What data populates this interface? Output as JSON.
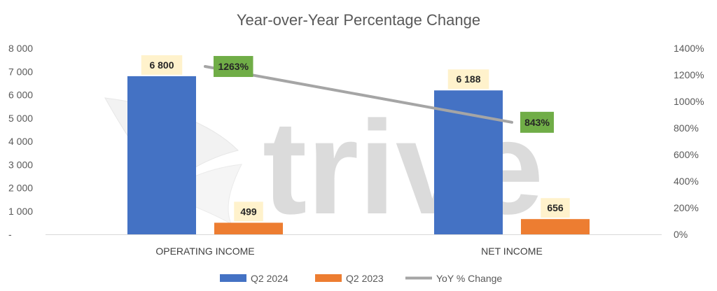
{
  "chart_data": {
    "type": "bar",
    "title": "Year-over-Year Percentage Change",
    "categories": [
      "OPERATING INCOME",
      "NET INCOME"
    ],
    "series": [
      {
        "name": "Q2 2024",
        "type": "bar",
        "axis": "left",
        "color": "#4472c4",
        "values": [
          6800,
          6188
        ],
        "labels": [
          "6 800",
          "6 188"
        ]
      },
      {
        "name": "Q2 2023",
        "type": "bar",
        "axis": "left",
        "color": "#ed7d31",
        "values": [
          499,
          656
        ],
        "labels": [
          "499",
          "656"
        ]
      },
      {
        "name": "YoY % Change",
        "type": "line",
        "axis": "right",
        "color": "#a5a5a5",
        "values": [
          1263,
          843
        ],
        "labels": [
          "1263%",
          "843%"
        ]
      }
    ],
    "y_left": {
      "ylim": [
        0,
        8000
      ],
      "ticks": [
        "-",
        "1 000",
        "2 000",
        "3 000",
        "4 000",
        "5 000",
        "6 000",
        "7 000",
        "8 000"
      ]
    },
    "y_right": {
      "ylim": [
        0,
        1400
      ],
      "ticks": [
        "0%",
        "200%",
        "400%",
        "600%",
        "800%",
        "1000%",
        "1200%",
        "1400%"
      ]
    },
    "bar_label_bg": "#fff2cc",
    "line_label_bg": "#70ad47",
    "legend_position": "bottom",
    "grid": false,
    "watermark": "trive"
  }
}
